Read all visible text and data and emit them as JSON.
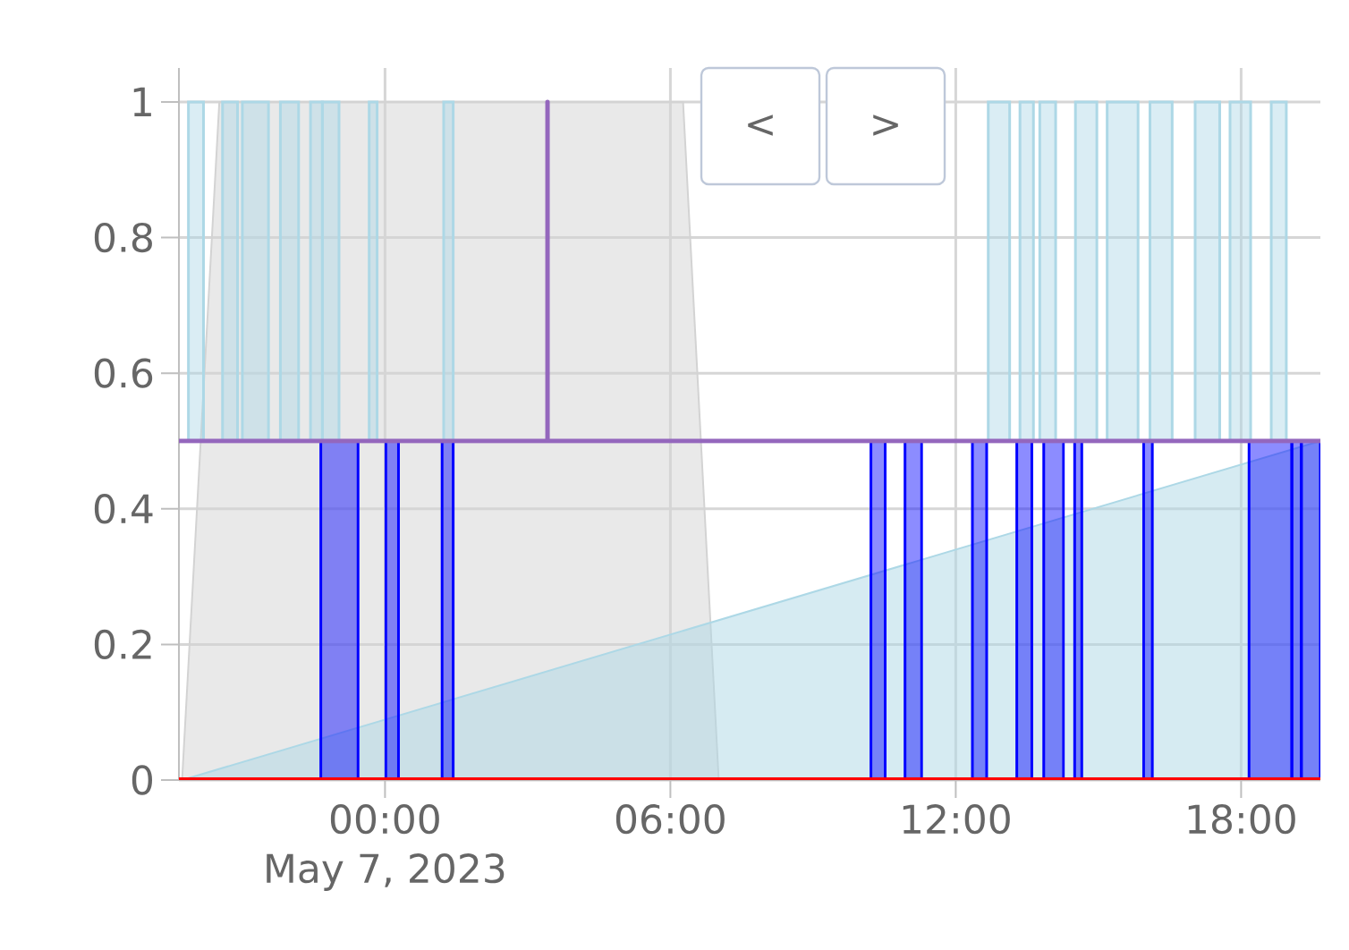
{
  "chart_data": {
    "type": "histogram",
    "xlim": [
      "2023-05-06T19:40",
      "2023-05-07T19:40"
    ],
    "xticks": [
      {
        "value": "2023-05-07T00:00",
        "label": "00:00\nMay 7, 2023"
      },
      {
        "value": "2023-05-07T06:00",
        "label": "06:00"
      },
      {
        "value": "2023-05-07T12:00",
        "label": "12:00"
      },
      {
        "value": "2023-05-07T18:00",
        "label": "18:00"
      }
    ],
    "ylim": [
      0,
      1.05
    ],
    "yticks": [
      0,
      0.2,
      0.4,
      0.6,
      0.8,
      1
    ],
    "grid": true,
    "series": [
      {
        "type": "area",
        "color": "#d3d3d3",
        "x": [
          "2023-05-06T19:44",
          "2023-05-06T20:31",
          "2023-05-07T06:16",
          "2023-05-07T07:01"
        ],
        "values": [
          0,
          1,
          1,
          0
        ]
      },
      {
        "type": "area",
        "color": "#add8e6",
        "x": [
          "2023-05-06T19:44",
          "2023-05-07T19:40"
        ],
        "values": [
          0,
          0.5
        ]
      },
      {
        "color": "#add8e6",
        "bins": [
          "2023-05-06T19:52",
          "2023-05-06T20:11",
          "2023-05-06T20:35",
          "2023-05-06T20:54",
          "2023-05-06T21:00",
          "2023-05-06T21:33",
          "2023-05-06T21:48",
          "2023-05-06T22:11",
          "2023-05-06T22:26",
          "2023-05-06T22:41",
          "2023-05-06T23:02",
          "2023-05-06T23:40",
          "2023-05-06T23:50",
          "2023-05-07T01:14",
          "2023-05-07T01:26",
          "2023-05-07T12:41",
          "2023-05-07T13:08",
          "2023-05-07T13:21",
          "2023-05-07T13:38",
          "2023-05-07T13:46",
          "2023-05-07T14:06",
          "2023-05-07T14:31",
          "2023-05-07T14:58",
          "2023-05-07T15:11",
          "2023-05-07T15:50",
          "2023-05-07T16:05",
          "2023-05-07T16:33",
          "2023-05-07T17:02",
          "2023-05-07T17:33",
          "2023-05-07T17:46",
          "2023-05-07T18:12",
          "2023-05-07T18:38",
          "2023-05-07T18:57"
        ],
        "values": [
          0.5,
          null,
          0.5,
          null,
          0.5,
          null,
          0.5,
          null,
          0.5,
          0.5,
          null,
          0.5,
          null,
          0.5,
          null,
          0.5,
          null,
          0.5,
          null,
          0.5,
          null,
          0.5,
          null,
          0.5,
          null,
          0.5,
          null,
          0.5,
          null,
          0.5,
          null,
          0.5
        ],
        "base": [
          0.5,
          null,
          0.5,
          null,
          0.5,
          null,
          0.5,
          null,
          0.5,
          0.5,
          null,
          0.5,
          null,
          0.5,
          null,
          0.5,
          null,
          0.5,
          null,
          0.5,
          null,
          0.5,
          null,
          0.5,
          null,
          0.5,
          null,
          0.5,
          null,
          0.5,
          null,
          0.5
        ]
      },
      {
        "color": "#0000ff",
        "bins": [
          "2023-05-06T22:39",
          "2023-05-06T23:26",
          "2023-05-07T00:01",
          "2023-05-07T00:17",
          "2023-05-07T01:12",
          "2023-05-07T01:26",
          "2023-05-07T10:13",
          "2023-05-07T10:31",
          "2023-05-07T10:56",
          "2023-05-07T11:17",
          "2023-05-07T12:21",
          "2023-05-07T12:39",
          "2023-05-07T13:17",
          "2023-05-07T13:36",
          "2023-05-07T13:51",
          "2023-05-07T14:16",
          "2023-05-07T14:30",
          "2023-05-07T14:39",
          "2023-05-07T15:57",
          "2023-05-07T16:08",
          "2023-05-07T18:10",
          "2023-05-07T19:04",
          "2023-05-07T19:16",
          "2023-05-07T19:40"
        ],
        "values": [
          0.5,
          null,
          0.5,
          null,
          0.5,
          null,
          0.5,
          null,
          0.5,
          null,
          0.5,
          null,
          0.5,
          null,
          0.5,
          null,
          0.5,
          null,
          0.5,
          null,
          0.5,
          0.5,
          0.5
        ]
      },
      {
        "type": "line",
        "color": "#9467bd",
        "x": [
          "2023-05-06T19:40",
          "2023-05-07T03:25",
          "2023-05-07T03:25",
          "2023-05-07T03:25",
          "2023-05-07T19:40"
        ],
        "values": [
          0.5,
          0.5,
          1,
          0.5,
          0.5
        ]
      }
    ],
    "ref_lines": [
      {
        "axis": "y",
        "value": 0,
        "color": "#ff0000"
      }
    ],
    "annotations": [
      "<",
      ">"
    ]
  }
}
